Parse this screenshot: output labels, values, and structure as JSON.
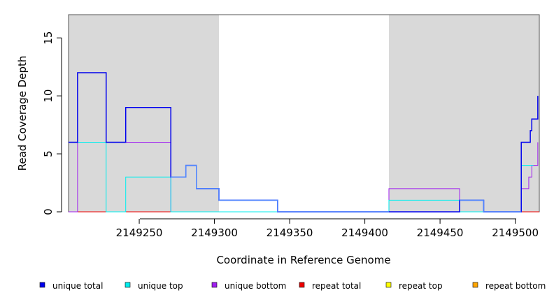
{
  "chart_data": {
    "type": "line",
    "title": "",
    "xlabel": "Coordinate in Reference Genome",
    "ylabel": "Read Coverage Depth",
    "xlim": [
      2149203,
      2149516
    ],
    "ylim": [
      0,
      17
    ],
    "x_ticks": [
      2149250,
      2149300,
      2149350,
      2149400,
      2149450,
      2149500
    ],
    "y_ticks": [
      0,
      5,
      10,
      15
    ],
    "shaded_regions": [
      [
        2149203,
        2149303
      ],
      [
        2149416,
        2149516
      ]
    ],
    "shade_color": "#d9d9d9",
    "legend_position": "bottom",
    "series": [
      {
        "name": "unique total",
        "color": "#0000ee",
        "points": [
          [
            2149203,
            6
          ],
          [
            2149209,
            12
          ],
          [
            2149228,
            6
          ],
          [
            2149241,
            9
          ],
          [
            2149271,
            3
          ],
          [
            2149281,
            4
          ],
          [
            2149288,
            2
          ],
          [
            2149303,
            1
          ],
          [
            2149342,
            0
          ],
          [
            2149416,
            0
          ],
          [
            2149463,
            1
          ],
          [
            2149479,
            0
          ],
          [
            2149504,
            6
          ],
          [
            2149510,
            7
          ],
          [
            2149511,
            8
          ],
          [
            2149515,
            10
          ]
        ]
      },
      {
        "name": "unique top",
        "color": "#00eeee",
        "points": [
          [
            2149203,
            6
          ],
          [
            2149228,
            0
          ],
          [
            2149241,
            3
          ],
          [
            2149271,
            0
          ],
          [
            2149416,
            1
          ],
          [
            2149463,
            0
          ],
          [
            2149504,
            4
          ],
          [
            2149512,
            4
          ]
        ]
      },
      {
        "name": "unique bottom",
        "color": "#a020f0",
        "points": [
          [
            2149203,
            0
          ],
          [
            2149209,
            6
          ],
          [
            2149271,
            0
          ],
          [
            2149303,
            0
          ],
          [
            2149342,
            0
          ],
          [
            2149416,
            2
          ],
          [
            2149463,
            0
          ],
          [
            2149504,
            2
          ],
          [
            2149509,
            3
          ],
          [
            2149511,
            4
          ],
          [
            2149515,
            6
          ]
        ]
      },
      {
        "name": "repeat total",
        "color": "#ee0000",
        "points": [
          [
            2149203,
            0
          ],
          [
            2149516,
            0
          ]
        ]
      },
      {
        "name": "repeat top",
        "color": "#ffff00",
        "points": [
          [
            2149203,
            0
          ],
          [
            2149516,
            0
          ]
        ]
      },
      {
        "name": "repeat bottom",
        "color": "#ffa500",
        "points": [
          [
            2149203,
            0
          ],
          [
            2149516,
            0
          ]
        ]
      }
    ],
    "overlay_series": {
      "name": "unique total (blended)",
      "color": "#4f86ff",
      "segments": [
        [
          2149271,
          2149416
        ],
        [
          2149463,
          2149504
        ]
      ]
    }
  }
}
